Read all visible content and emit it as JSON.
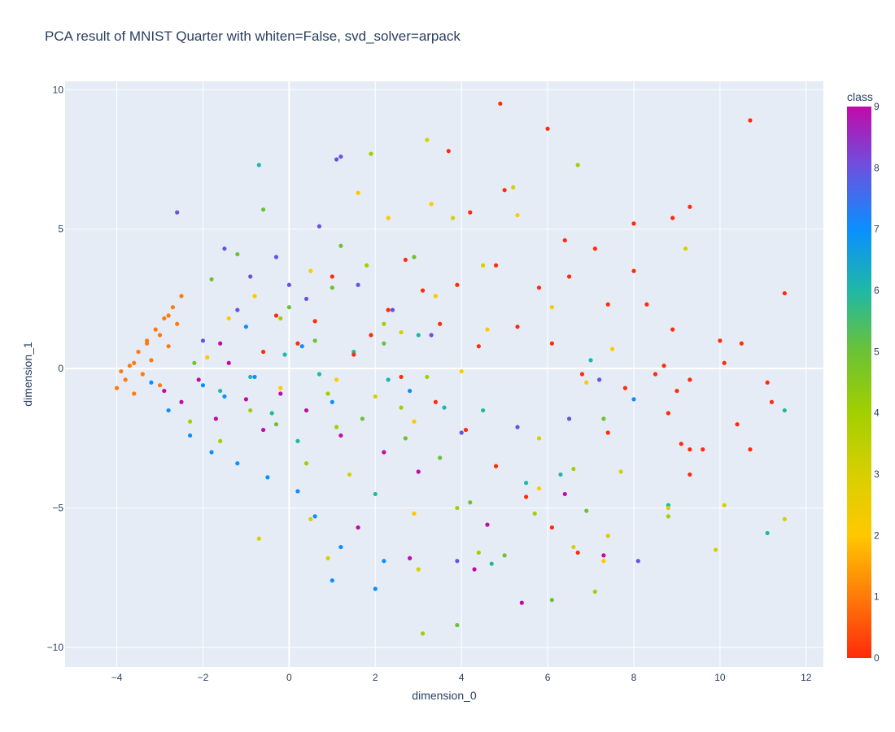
{
  "chart_data": {
    "type": "scatter",
    "title": "PCA result of MNIST Quarter with whiten=False, svd_solver=arpack",
    "xlabel": "dimension_0",
    "ylabel": "dimension_1",
    "xlim": [
      -5.2,
      12.4
    ],
    "ylim": [
      -10.7,
      10.3
    ],
    "xticks": [
      -4,
      -2,
      0,
      2,
      4,
      6,
      8,
      10,
      12
    ],
    "xtick_labels": [
      "−4",
      "−2",
      "0",
      "2",
      "4",
      "6",
      "8",
      "10",
      "12"
    ],
    "yticks": [
      10,
      5,
      0,
      -5,
      -10
    ],
    "ytick_labels": [
      "10",
      "5",
      "0",
      "−5",
      "−10"
    ],
    "grid": true,
    "background": "#e5ecf6",
    "colorbar": {
      "title": "class",
      "min": 0,
      "max": 9,
      "ticks": [
        "0",
        "1",
        "2",
        "3",
        "4",
        "5",
        "6",
        "7",
        "8",
        "9"
      ],
      "colorscale": [
        "#ff2b0a",
        "#ff7a0a",
        "#ffc800",
        "#d8cf00",
        "#a2cf00",
        "#6cc234",
        "#1fb8a6",
        "#0a8fff",
        "#6a52e0",
        "#c20aa8"
      ]
    },
    "points": [
      [
        -4.0,
        -0.7,
        1
      ],
      [
        -3.8,
        -0.4,
        1
      ],
      [
        -3.7,
        0.1,
        1
      ],
      [
        -3.6,
        -0.9,
        1
      ],
      [
        -3.5,
        0.6,
        1
      ],
      [
        -3.4,
        -0.2,
        1
      ],
      [
        -3.3,
        1.0,
        1
      ],
      [
        -3.2,
        0.3,
        1
      ],
      [
        -3.1,
        1.4,
        1
      ],
      [
        -3.0,
        -0.6,
        1
      ],
      [
        -2.9,
        1.8,
        1
      ],
      [
        -2.8,
        0.8,
        1
      ],
      [
        -2.7,
        2.2,
        1
      ],
      [
        -2.6,
        1.6,
        1
      ],
      [
        -2.5,
        2.6,
        1
      ],
      [
        -3.9,
        -0.1,
        1
      ],
      [
        -3.6,
        0.2,
        1
      ],
      [
        -3.3,
        0.9,
        1
      ],
      [
        -3.0,
        1.2,
        1
      ],
      [
        -2.8,
        1.9,
        1
      ],
      [
        -3.2,
        -0.5,
        7
      ],
      [
        -2.8,
        -1.5,
        7
      ],
      [
        -2.3,
        -2.4,
        7
      ],
      [
        -1.8,
        -3.0,
        7
      ],
      [
        -1.2,
        -3.4,
        7
      ],
      [
        -0.5,
        -3.9,
        7
      ],
      [
        0.2,
        -4.4,
        7
      ],
      [
        0.6,
        -5.3,
        7
      ],
      [
        1.2,
        -6.4,
        7
      ],
      [
        2.2,
        -6.9,
        7
      ],
      [
        2.0,
        -7.9,
        7
      ],
      [
        1.0,
        -7.6,
        7
      ],
      [
        -1.5,
        -1.0,
        7
      ],
      [
        -0.8,
        -0.3,
        7
      ],
      [
        0.3,
        0.8,
        7
      ],
      [
        1.0,
        -1.2,
        7
      ],
      [
        8.0,
        -1.1,
        7
      ],
      [
        2.8,
        -0.8,
        7
      ],
      [
        -2.0,
        -0.6,
        7
      ],
      [
        -1.0,
        1.5,
        7
      ],
      [
        -2.9,
        -0.8,
        9
      ],
      [
        -2.5,
        -1.2,
        9
      ],
      [
        -2.1,
        -0.4,
        9
      ],
      [
        -1.7,
        -1.8,
        9
      ],
      [
        -1.4,
        0.2,
        9
      ],
      [
        -1.0,
        -1.1,
        9
      ],
      [
        -0.6,
        -2.2,
        9
      ],
      [
        -0.2,
        -0.9,
        9
      ],
      [
        0.4,
        -1.5,
        9
      ],
      [
        1.2,
        -2.4,
        9
      ],
      [
        2.2,
        -3.0,
        9
      ],
      [
        3.0,
        -3.7,
        9
      ],
      [
        1.6,
        -5.7,
        9
      ],
      [
        2.8,
        -6.8,
        9
      ],
      [
        4.3,
        -7.2,
        9
      ],
      [
        5.4,
        -8.4,
        9
      ],
      [
        6.4,
        -4.5,
        9
      ],
      [
        7.3,
        -6.7,
        9
      ],
      [
        4.6,
        -5.6,
        9
      ],
      [
        -1.6,
        0.9,
        9
      ],
      [
        -2.6,
        5.6,
        8
      ],
      [
        -1.5,
        4.3,
        8
      ],
      [
        -0.9,
        3.3,
        8
      ],
      [
        -0.3,
        4.0,
        8
      ],
      [
        0.7,
        5.1,
        8
      ],
      [
        1.1,
        7.5,
        8
      ],
      [
        1.2,
        7.6,
        8
      ],
      [
        0.4,
        2.5,
        8
      ],
      [
        1.6,
        3.0,
        8
      ],
      [
        2.4,
        2.1,
        8
      ],
      [
        3.3,
        1.2,
        8
      ],
      [
        4.0,
        -2.3,
        8
      ],
      [
        5.3,
        -2.1,
        8
      ],
      [
        6.5,
        -1.8,
        8
      ],
      [
        7.2,
        -0.4,
        8
      ],
      [
        8.1,
        -6.9,
        8
      ],
      [
        3.9,
        -6.9,
        8
      ],
      [
        -1.2,
        2.1,
        8
      ],
      [
        -2.0,
        1.0,
        8
      ],
      [
        0.0,
        3.0,
        8
      ],
      [
        -0.7,
        7.3,
        6
      ],
      [
        -1.6,
        -0.8,
        6
      ],
      [
        -0.9,
        -0.3,
        6
      ],
      [
        -0.1,
        0.5,
        6
      ],
      [
        0.7,
        -0.2,
        6
      ],
      [
        1.5,
        0.6,
        6
      ],
      [
        2.3,
        -0.4,
        6
      ],
      [
        3.0,
        1.2,
        6
      ],
      [
        3.6,
        -1.4,
        6
      ],
      [
        4.5,
        -1.5,
        6
      ],
      [
        5.5,
        -4.1,
        6
      ],
      [
        6.3,
        -3.8,
        6
      ],
      [
        7.0,
        0.3,
        6
      ],
      [
        8.8,
        -4.9,
        6
      ],
      [
        11.1,
        -5.9,
        6
      ],
      [
        11.5,
        -1.5,
        6
      ],
      [
        4.7,
        -7.0,
        6
      ],
      [
        -0.4,
        -1.6,
        6
      ],
      [
        0.2,
        -2.6,
        6
      ],
      [
        2.0,
        -4.5,
        6
      ],
      [
        -2.2,
        0.2,
        5
      ],
      [
        -1.8,
        3.2,
        5
      ],
      [
        -1.2,
        4.1,
        5
      ],
      [
        -0.6,
        5.7,
        5
      ],
      [
        0.0,
        2.2,
        5
      ],
      [
        0.6,
        1.0,
        5
      ],
      [
        1.2,
        4.4,
        5
      ],
      [
        1.7,
        -1.8,
        5
      ],
      [
        2.2,
        0.9,
        5
      ],
      [
        2.7,
        -2.5,
        5
      ],
      [
        3.5,
        -3.2,
        5
      ],
      [
        4.2,
        -4.8,
        5
      ],
      [
        5.0,
        -6.7,
        5
      ],
      [
        6.1,
        -8.3,
        5
      ],
      [
        6.9,
        -5.1,
        5
      ],
      [
        3.9,
        -9.2,
        5
      ],
      [
        7.3,
        -1.8,
        5
      ],
      [
        1.0,
        2.9,
        5
      ],
      [
        -0.3,
        -2.0,
        5
      ],
      [
        2.9,
        4.0,
        5
      ],
      [
        -2.3,
        -1.9,
        4
      ],
      [
        -1.6,
        -2.6,
        4
      ],
      [
        -0.9,
        -1.5,
        4
      ],
      [
        -0.2,
        1.8,
        4
      ],
      [
        0.4,
        -3.4,
        4
      ],
      [
        1.1,
        -2.1,
        4
      ],
      [
        1.8,
        3.7,
        4
      ],
      [
        2.6,
        -1.4,
        4
      ],
      [
        3.2,
        -0.3,
        4
      ],
      [
        3.9,
        -5.0,
        4
      ],
      [
        4.4,
        -6.6,
        4
      ],
      [
        5.7,
        -5.2,
        4
      ],
      [
        6.6,
        -3.6,
        4
      ],
      [
        7.1,
        -8.0,
        4
      ],
      [
        8.8,
        -5.3,
        4
      ],
      [
        3.1,
        -9.5,
        4
      ],
      [
        1.9,
        7.7,
        4
      ],
      [
        6.7,
        7.3,
        4
      ],
      [
        2.2,
        1.6,
        4
      ],
      [
        0.9,
        -0.9,
        4
      ],
      [
        -0.7,
        -6.1,
        3
      ],
      [
        0.5,
        -5.4,
        3
      ],
      [
        0.9,
        -6.8,
        3
      ],
      [
        1.4,
        -3.8,
        3
      ],
      [
        2.0,
        -1.0,
        3
      ],
      [
        2.6,
        1.3,
        3
      ],
      [
        3.2,
        8.2,
        3
      ],
      [
        3.8,
        5.4,
        3
      ],
      [
        4.5,
        3.7,
        3
      ],
      [
        5.2,
        6.5,
        3
      ],
      [
        5.8,
        -2.5,
        3
      ],
      [
        6.6,
        -6.4,
        3
      ],
      [
        7.4,
        -6.0,
        3
      ],
      [
        7.7,
        -3.7,
        3
      ],
      [
        8.8,
        -5.0,
        3
      ],
      [
        9.2,
        4.3,
        3
      ],
      [
        9.9,
        -6.5,
        3
      ],
      [
        10.1,
        -4.9,
        3
      ],
      [
        11.5,
        -5.4,
        3
      ],
      [
        3.0,
        -7.2,
        3
      ],
      [
        -1.9,
        0.4,
        2
      ],
      [
        -1.4,
        1.8,
        2
      ],
      [
        -0.8,
        2.6,
        2
      ],
      [
        -0.2,
        -0.7,
        2
      ],
      [
        0.5,
        3.5,
        2
      ],
      [
        1.1,
        -0.4,
        2
      ],
      [
        1.6,
        6.3,
        2
      ],
      [
        2.3,
        5.4,
        2
      ],
      [
        2.9,
        -1.9,
        2
      ],
      [
        3.4,
        2.6,
        2
      ],
      [
        4.0,
        -0.1,
        2
      ],
      [
        4.6,
        1.4,
        2
      ],
      [
        5.3,
        5.5,
        2
      ],
      [
        6.1,
        2.2,
        2
      ],
      [
        6.9,
        -0.5,
        2
      ],
      [
        7.5,
        0.7,
        2
      ],
      [
        7.3,
        -6.9,
        2
      ],
      [
        2.9,
        -5.2,
        2
      ],
      [
        5.8,
        -4.3,
        2
      ],
      [
        3.3,
        5.9,
        2
      ],
      [
        4.9,
        9.5,
        0
      ],
      [
        6.0,
        8.6,
        0
      ],
      [
        10.7,
        8.9,
        0
      ],
      [
        3.7,
        7.8,
        0
      ],
      [
        5.0,
        6.4,
        0
      ],
      [
        4.2,
        5.6,
        0
      ],
      [
        6.4,
        4.6,
        0
      ],
      [
        7.1,
        4.3,
        0
      ],
      [
        8.0,
        5.2,
        0
      ],
      [
        8.9,
        5.4,
        0
      ],
      [
        9.3,
        5.8,
        0
      ],
      [
        11.5,
        2.7,
        0
      ],
      [
        8.0,
        3.5,
        0
      ],
      [
        8.3,
        2.3,
        0
      ],
      [
        8.9,
        1.4,
        0
      ],
      [
        10.0,
        1.0,
        0
      ],
      [
        10.5,
        0.9,
        0
      ],
      [
        10.1,
        0.2,
        0
      ],
      [
        11.1,
        -0.5,
        0
      ],
      [
        11.2,
        -1.2,
        0
      ],
      [
        9.0,
        -0.8,
        0
      ],
      [
        9.3,
        -0.4,
        0
      ],
      [
        8.5,
        -0.2,
        0
      ],
      [
        7.8,
        -0.7,
        0
      ],
      [
        10.4,
        -2.0,
        0
      ],
      [
        10.7,
        -2.9,
        0
      ],
      [
        9.6,
        -2.9,
        0
      ],
      [
        9.3,
        -2.9,
        0
      ],
      [
        9.1,
        -2.7,
        0
      ],
      [
        9.3,
        -3.8,
        0
      ],
      [
        8.8,
        -1.6,
        0
      ],
      [
        7.4,
        -2.3,
        0
      ],
      [
        6.8,
        -0.2,
        0
      ],
      [
        6.1,
        0.9,
        0
      ],
      [
        5.8,
        2.9,
        0
      ],
      [
        5.3,
        1.5,
        0
      ],
      [
        4.8,
        3.7,
        0
      ],
      [
        4.4,
        0.8,
        0
      ],
      [
        3.9,
        3.0,
        0
      ],
      [
        3.5,
        1.6,
        0
      ],
      [
        3.1,
        2.8,
        0
      ],
      [
        2.7,
        3.9,
        0
      ],
      [
        2.3,
        2.1,
        0
      ],
      [
        1.9,
        1.2,
        0
      ],
      [
        1.5,
        0.5,
        0
      ],
      [
        1.0,
        3.3,
        0
      ],
      [
        0.6,
        1.7,
        0
      ],
      [
        0.2,
        0.9,
        0
      ],
      [
        -0.3,
        1.9,
        0
      ],
      [
        -0.6,
        0.6,
        0
      ],
      [
        4.1,
        -2.2,
        0
      ],
      [
        4.8,
        -3.5,
        0
      ],
      [
        5.5,
        -4.6,
        0
      ],
      [
        6.1,
        -5.7,
        0
      ],
      [
        6.7,
        -6.6,
        0
      ],
      [
        3.4,
        -1.2,
        0
      ],
      [
        2.6,
        -0.3,
        0
      ],
      [
        6.5,
        3.3,
        0
      ],
      [
        7.4,
        2.3,
        0
      ],
      [
        8.7,
        0.1,
        0
      ]
    ]
  }
}
